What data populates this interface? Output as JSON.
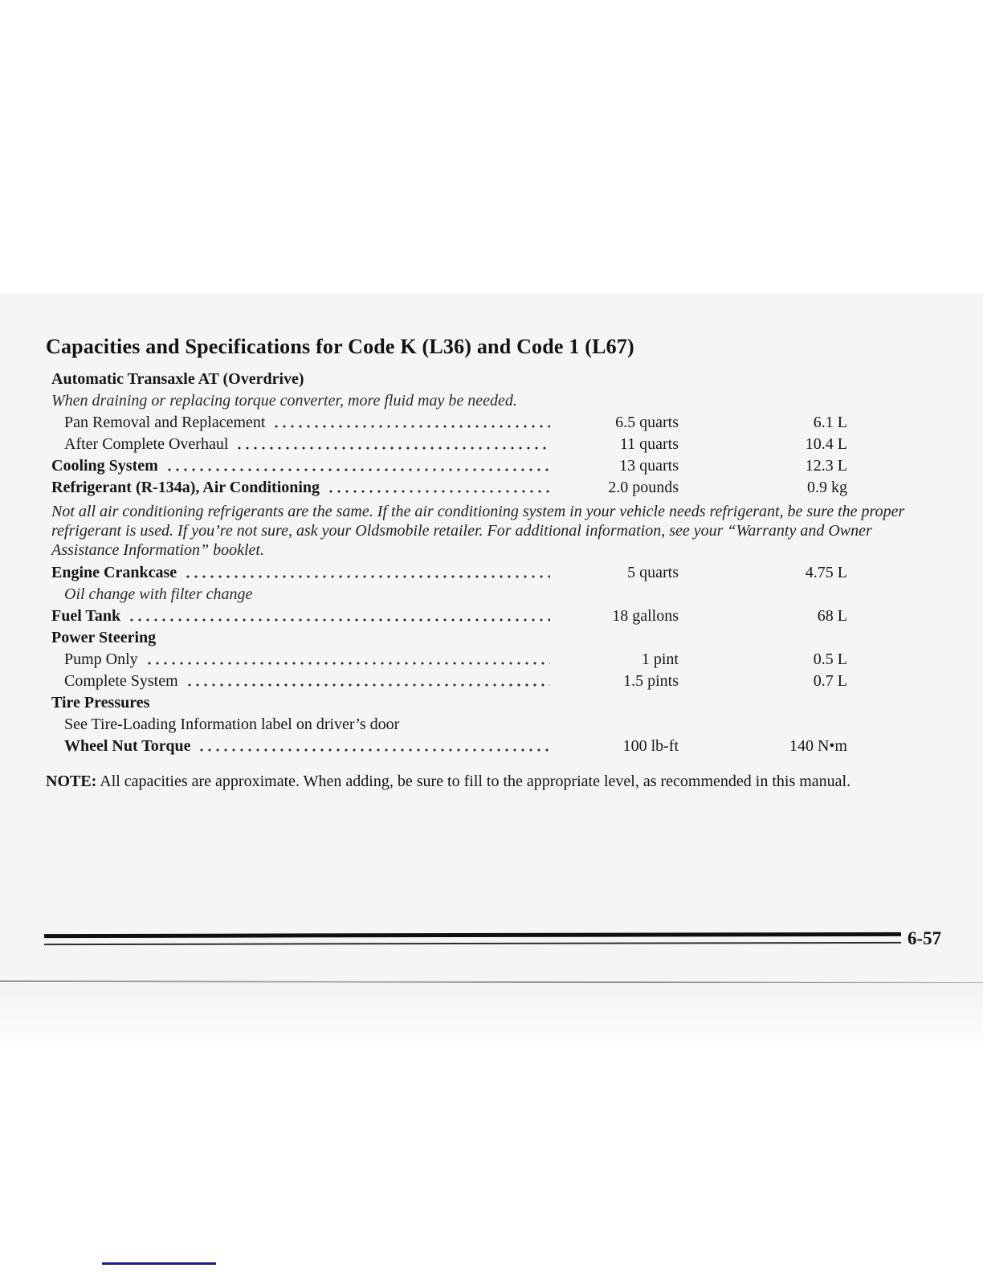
{
  "colors": {
    "page_background": "#f5f5f4",
    "text": "#161616",
    "footer_rule": "#101010",
    "page_edge_gray": "#9a9a9a",
    "bottom_line_blue": "#1b1b8f"
  },
  "document": {
    "title": "Capacities and Specifications for Code K (L36) and Code 1 (L67)",
    "lines": [
      {
        "type": "heading",
        "indent": 1,
        "text": "Automatic Transaxle AT (Overdrive)"
      },
      {
        "type": "italic",
        "indent": 1,
        "text": "When draining or replacing torque converter, more fluid may be needed."
      },
      {
        "type": "row",
        "indent": 2,
        "bold": false,
        "label": "Pan Removal and Replacement",
        "value": "6.5 quarts",
        "metric": "6.1 L"
      },
      {
        "type": "row",
        "indent": 2,
        "bold": false,
        "label": "After Complete Overhaul",
        "value": "11 quarts",
        "metric": "10.4 L"
      },
      {
        "type": "row",
        "indent": 1,
        "bold": true,
        "label": "Cooling System",
        "value": "13 quarts",
        "metric": "12.3 L"
      },
      {
        "type": "row",
        "indent": 1,
        "bold": true,
        "label": "Refrigerant (R-134a), Air Conditioning",
        "value": "2.0 pounds",
        "metric": "0.9 kg"
      },
      {
        "type": "para",
        "indent": 1,
        "text": "Not all air conditioning refrigerants are the same. If the air conditioning system in your vehicle needs refrigerant, be sure the proper refrigerant is used. If you’re not sure, ask your Oldsmobile retailer. For additional information, see your “Warranty and Owner Assistance Information” booklet."
      },
      {
        "type": "row",
        "indent": 1,
        "bold": true,
        "label": "Engine Crankcase",
        "value": "5 quarts",
        "metric": "4.75 L"
      },
      {
        "type": "italic",
        "indent": 2,
        "text": "Oil change with filter change"
      },
      {
        "type": "row",
        "indent": 1,
        "bold": true,
        "label": "Fuel Tank",
        "value": "18 gallons",
        "metric": "68 L"
      },
      {
        "type": "heading",
        "indent": 1,
        "text": "Power Steering"
      },
      {
        "type": "row",
        "indent": 2,
        "bold": false,
        "label": "Pump Only",
        "value": "1 pint",
        "metric": "0.5 L"
      },
      {
        "type": "row",
        "indent": 2,
        "bold": false,
        "label": "Complete System",
        "value": "1.5 pints",
        "metric": "0.7 L"
      },
      {
        "type": "heading",
        "indent": 1,
        "text": "Tire Pressures"
      },
      {
        "type": "plain",
        "indent": 2,
        "text": "See Tire-Loading Information label on driver’s door"
      },
      {
        "type": "row",
        "indent": 2,
        "bold": true,
        "label": "Wheel Nut Torque",
        "value": "100 lb-ft",
        "metric": "140 N•m"
      }
    ],
    "note": {
      "label": "NOTE:",
      "text": "All capacities are approximate. When adding, be sure to fill to the appropriate level, as recommended in this manual."
    },
    "footer": {
      "page_number": "6-57"
    }
  }
}
